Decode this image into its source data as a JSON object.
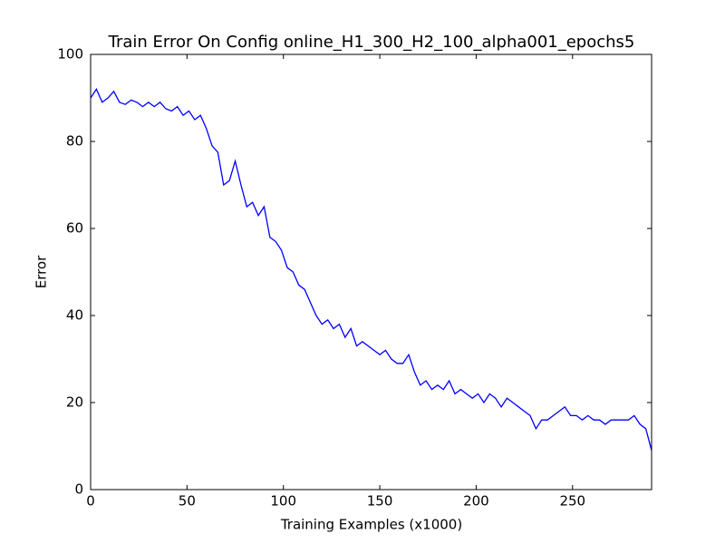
{
  "chart_data": {
    "type": "line",
    "title": "Train Error On Config online_H1_300_H2_100_alpha001_epochs5",
    "xlabel": "Training Examples (x1000)",
    "ylabel": "Error",
    "color": "#0000ff",
    "x": [
      0,
      3,
      6,
      9,
      12,
      15,
      18,
      21,
      24,
      27,
      30,
      33,
      36,
      39,
      42,
      45,
      48,
      51,
      54,
      57,
      60,
      63,
      66,
      69,
      72,
      75,
      78,
      81,
      84,
      87,
      90,
      93,
      96,
      99,
      102,
      105,
      108,
      111,
      114,
      117,
      120,
      123,
      126,
      129,
      132,
      135,
      138,
      141,
      144,
      147,
      150,
      153,
      156,
      159,
      162,
      165,
      168,
      171,
      174,
      177,
      180,
      183,
      186,
      189,
      192,
      195,
      198,
      201,
      204,
      207,
      210,
      213,
      216,
      219,
      222,
      225,
      228,
      231,
      234,
      237,
      240,
      243,
      246,
      249,
      252,
      255,
      258,
      261,
      264,
      267,
      270,
      273,
      276,
      279,
      282,
      285,
      288,
      291
    ],
    "values": [
      90,
      92,
      89,
      90,
      91.5,
      89,
      88.5,
      89.5,
      89,
      88,
      89,
      88,
      89,
      87.5,
      87,
      88,
      86,
      87,
      85,
      86,
      83,
      79,
      77.5,
      70,
      71,
      75.5,
      70,
      65,
      66,
      63,
      65,
      58,
      57,
      55,
      51,
      50,
      47,
      46,
      43,
      40,
      38,
      39,
      37,
      38,
      35,
      37,
      33,
      34,
      33,
      32,
      31,
      32,
      30,
      29,
      29,
      31,
      27,
      24,
      25,
      23,
      24,
      23,
      25,
      22,
      23,
      22,
      21,
      22,
      20,
      22,
      21,
      19,
      21,
      20,
      19,
      18,
      17,
      14,
      16,
      16,
      17,
      18,
      19,
      17,
      17,
      16,
      17,
      16,
      16,
      15,
      16,
      16,
      16,
      16,
      17,
      15,
      14,
      9
    ],
    "xlim": [
      0,
      291
    ],
    "ylim": [
      0,
      100
    ],
    "xticks": [
      0,
      50,
      100,
      150,
      200,
      250
    ],
    "yticks": [
      0,
      20,
      40,
      60,
      80,
      100
    ]
  }
}
